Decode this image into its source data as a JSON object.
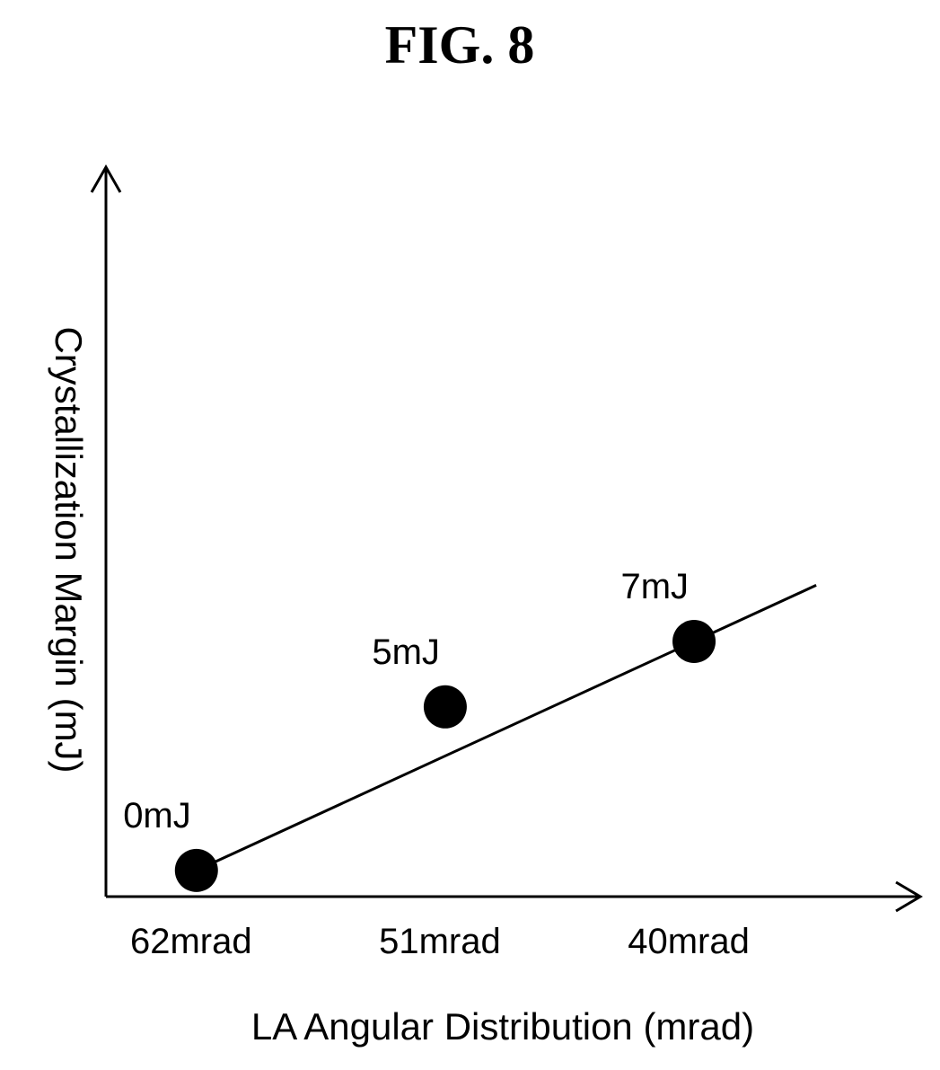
{
  "figure": {
    "title": "FIG. 8"
  },
  "chart_data": {
    "type": "line",
    "title": "FIG. 8",
    "xlabel": "LA Angular Distribution (mrad)",
    "ylabel": "Crystallization Margin (mJ)",
    "x_axis_direction": "decreasing",
    "x_ticks": [
      "62mrad",
      "51mrad",
      "40mrad"
    ],
    "xlim": [
      66,
      30
    ],
    "ylim": [
      -0.8,
      21.5
    ],
    "grid": false,
    "legend": "none",
    "series": [
      {
        "x": [
          62,
          51,
          40
        ],
        "y": [
          0,
          5,
          7
        ],
        "point_labels": [
          "0mJ",
          "5mJ",
          "7mJ"
        ]
      }
    ],
    "trend_line": {
      "from_x": 62,
      "to_x": 34.6
    },
    "colors": {
      "ink": "#000000",
      "background": "#ffffff"
    }
  }
}
